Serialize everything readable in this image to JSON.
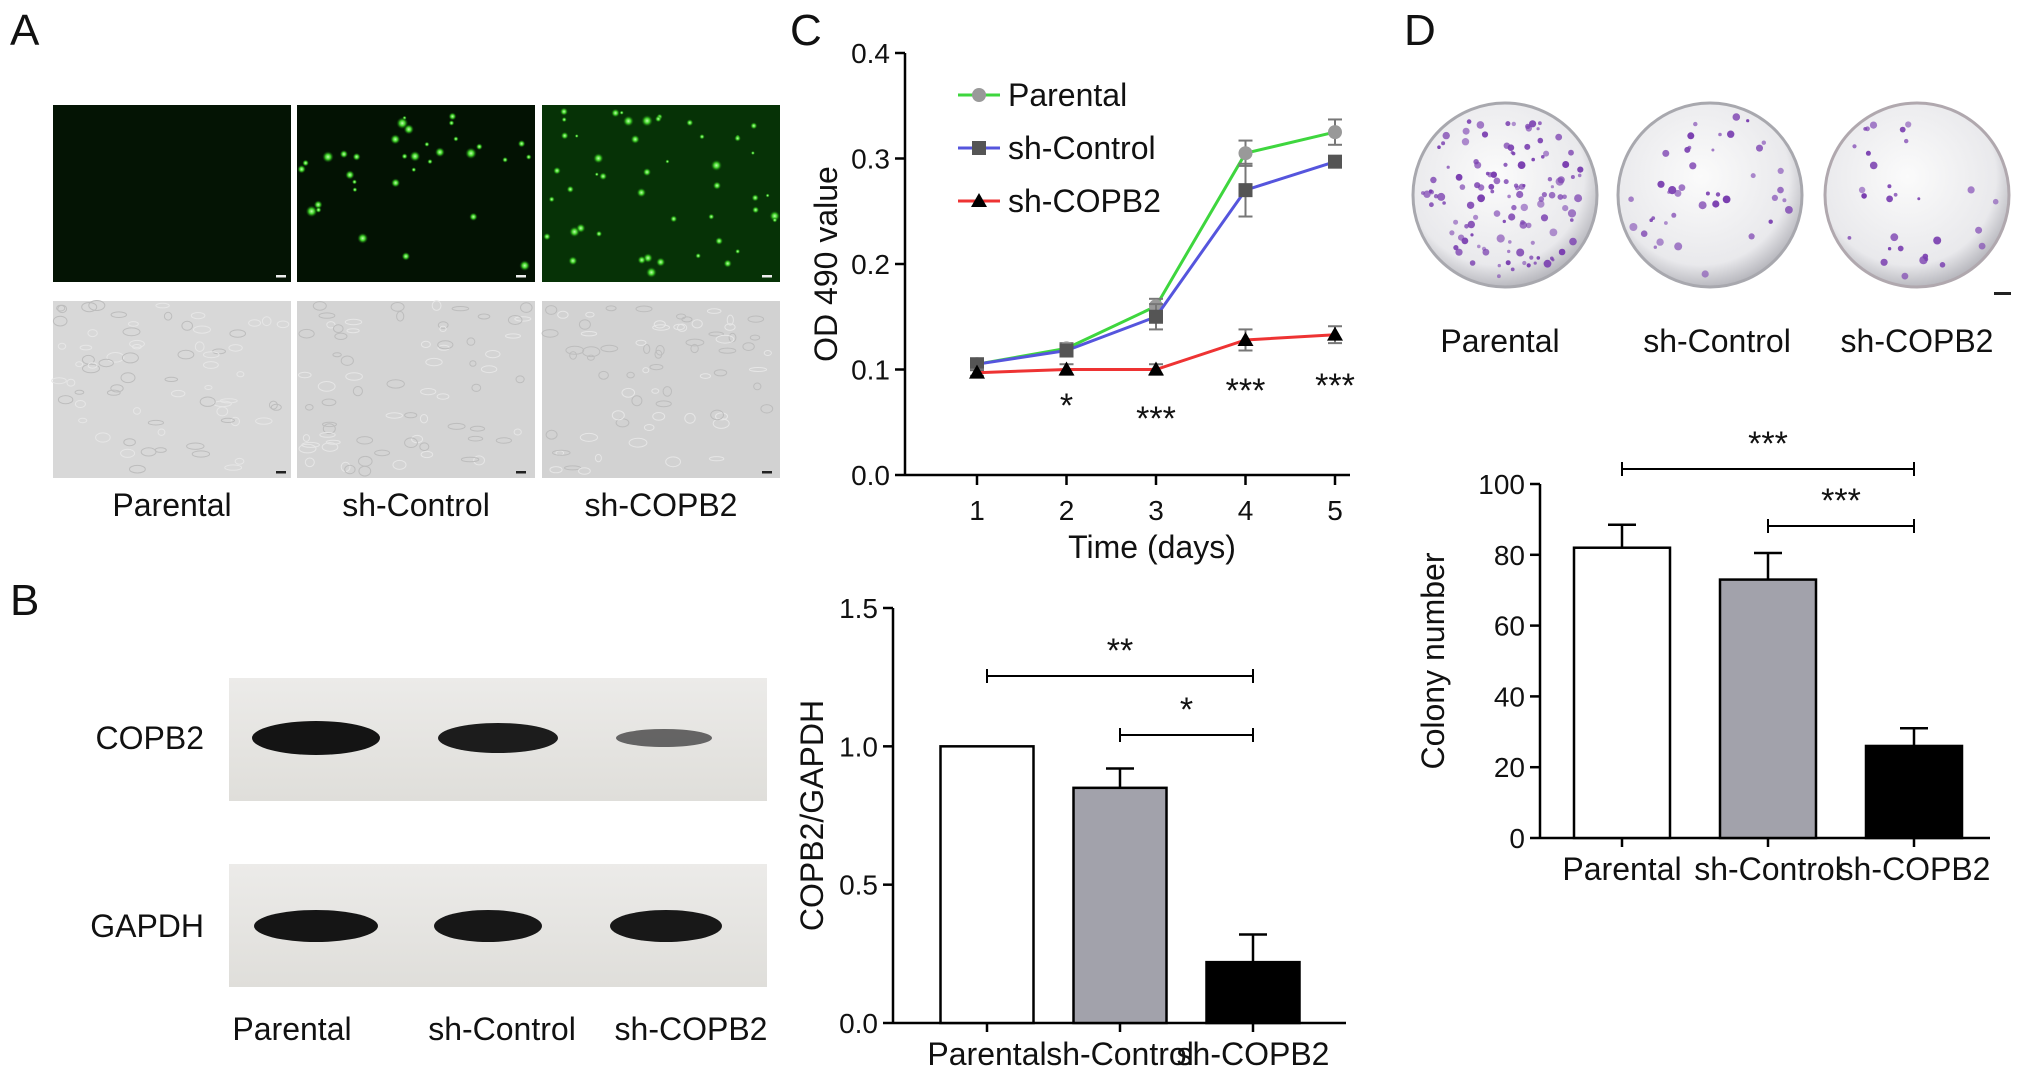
{
  "panels": {
    "a": {
      "letter": "A",
      "labels": [
        "Parental",
        "sh-Control",
        "sh-COPB2"
      ]
    },
    "b": {
      "letter": "B",
      "bands": [
        "COPB2",
        "GAPDH"
      ],
      "labels": [
        "Parental",
        "sh-Control",
        "sh-COPB2"
      ]
    },
    "c": {
      "letter": "C"
    },
    "d": {
      "letter": "D",
      "labels": [
        "Parental",
        "sh-Control",
        "sh-COPB2"
      ]
    }
  },
  "colors": {
    "parental": "#3ed63e",
    "sh_control": "#5555dd",
    "sh_copb2": "#ee3333",
    "bar_parental": "#ffffff",
    "bar_control": "#a2a2ab",
    "bar_copb2": "#000000",
    "fluor_bg": "#031203",
    "bright_bg": "#d6d6d6",
    "colony": "#7a3fb0"
  },
  "chart_data": [
    {
      "id": "growth",
      "type": "line",
      "xlabel": "Time (days)",
      "ylabel": "OD 490 value",
      "x": [
        1,
        2,
        3,
        4,
        5
      ],
      "xticks": [
        "1",
        "2",
        "3",
        "4",
        "5"
      ],
      "ylim": [
        0.0,
        0.4
      ],
      "yticks": [
        "0.0",
        "0.1",
        "0.2",
        "0.3",
        "0.4"
      ],
      "legend_position": "top-left",
      "series": [
        {
          "name": "Parental",
          "values": [
            0.105,
            0.12,
            0.16,
            0.305,
            0.325
          ],
          "err": [
            0.005,
            0.005,
            0.007,
            0.012,
            0.012
          ],
          "color": "#3ed63e",
          "marker": "circle"
        },
        {
          "name": "sh-Control",
          "values": [
            0.105,
            0.118,
            0.15,
            0.27,
            0.297
          ],
          "err": [
            0.005,
            0.005,
            0.012,
            0.025,
            0.005
          ],
          "color": "#5555dd",
          "marker": "square"
        },
        {
          "name": "sh-COPB2",
          "values": [
            0.097,
            0.1,
            0.1,
            0.128,
            0.133
          ],
          "err": [
            0.003,
            0.005,
            0.005,
            0.01,
            0.008
          ],
          "color": "#ee3333",
          "marker": "triangle"
        }
      ],
      "significance": [
        {
          "x": 2,
          "label": "*"
        },
        {
          "x": 3,
          "label": "***"
        },
        {
          "x": 4,
          "label": "***"
        },
        {
          "x": 5,
          "label": "***"
        }
      ]
    },
    {
      "id": "western",
      "type": "bar",
      "ylabel": "COPB2/GAPDH",
      "categories": [
        "Parental",
        "sh-Control",
        "sh-COPB2"
      ],
      "values": [
        1.0,
        0.85,
        0.22
      ],
      "err": [
        0.0,
        0.07,
        0.1
      ],
      "ylim": [
        0.0,
        1.5
      ],
      "yticks": [
        "0.0",
        "0.5",
        "1.0",
        "1.5"
      ],
      "significance": [
        {
          "from": 0,
          "to": 2,
          "label": "**"
        },
        {
          "from": 1,
          "to": 2,
          "label": "*"
        }
      ]
    },
    {
      "id": "colony",
      "type": "bar",
      "ylabel": "Colony number",
      "categories": [
        "Parental",
        "sh-Control",
        "sh-COPB2"
      ],
      "values": [
        82,
        73,
        26
      ],
      "err": [
        6.5,
        7.5,
        5.0
      ],
      "ylim": [
        0,
        100
      ],
      "yticks": [
        "0",
        "20",
        "40",
        "60",
        "80",
        "100"
      ],
      "significance": [
        {
          "from": 0,
          "to": 2,
          "label": "***"
        },
        {
          "from": 1,
          "to": 2,
          "label": "***"
        }
      ]
    }
  ]
}
